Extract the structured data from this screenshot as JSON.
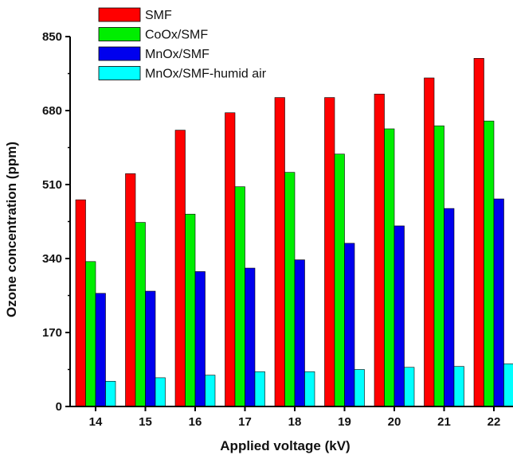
{
  "chart_data": {
    "type": "bar",
    "title": "",
    "xlabel": "Applied voltage (kV)",
    "ylabel": "Ozone concentration (ppm)",
    "categories": [
      "14",
      "15",
      "16",
      "17",
      "18",
      "19",
      "20",
      "21",
      "22"
    ],
    "ylim": [
      0,
      850
    ],
    "yticks": [
      "0",
      "170",
      "340",
      "510",
      "680",
      "850"
    ],
    "legend_position": "top-left",
    "grid": false,
    "series": [
      {
        "name": "SMF",
        "color": "#ff0000",
        "values": [
          475,
          535,
          635,
          675,
          710,
          710,
          718,
          755,
          800
        ]
      },
      {
        "name": "CoOx/SMF",
        "color": "#00ee00",
        "values": [
          333,
          423,
          442,
          505,
          538,
          580,
          638,
          645,
          656
        ]
      },
      {
        "name": "MnOx/SMF",
        "color": "#0000ee",
        "values": [
          260,
          265,
          310,
          318,
          337,
          375,
          415,
          455,
          477
        ]
      },
      {
        "name": "MnOx/SMF-humid air",
        "color": "#00ffff",
        "values": [
          58,
          66,
          72,
          80,
          80,
          85,
          90,
          92,
          98
        ]
      }
    ]
  }
}
